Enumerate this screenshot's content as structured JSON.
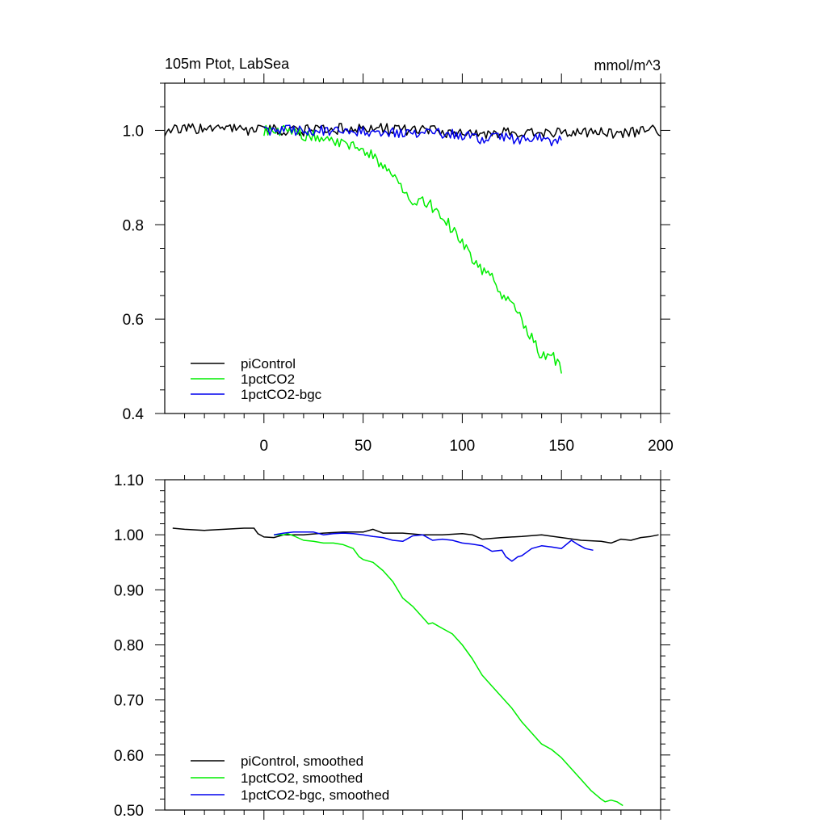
{
  "colors": {
    "piControl": "#000000",
    "1pctCO2": "#00ee00",
    "1pctCO2-bgc": "#0000ee"
  },
  "chart_data": [
    {
      "type": "line",
      "title_left": "105m Ptot, LabSea",
      "title_right": "mmol/m^3",
      "xlim": [
        -50,
        200
      ],
      "ylim": [
        0.4,
        1.1
      ],
      "x_ticks": [
        0,
        50,
        100,
        150,
        200
      ],
      "x_tick_labels": [
        "0",
        "50",
        "100",
        "150",
        "200"
      ],
      "y_ticks": [
        0.4,
        0.6,
        0.8,
        1.0
      ],
      "y_tick_labels": [
        "0.4",
        "0.6",
        "0.8",
        "1.0"
      ],
      "legend_position": "bottom-left",
      "series": [
        {
          "name": "piControl",
          "color": "#000000",
          "x_start": -50,
          "x_end": 200,
          "points": [
            [
              -50,
              1.0
            ],
            [
              -25,
              1.005
            ],
            [
              0,
              1.0
            ],
            [
              25,
              1.0
            ],
            [
              50,
              1.005
            ],
            [
              75,
              1.0
            ],
            [
              100,
              0.995
            ],
            [
              125,
              0.995
            ],
            [
              150,
              0.995
            ],
            [
              175,
              0.995
            ],
            [
              200,
              1.0
            ]
          ]
        },
        {
          "name": "1pctCO2",
          "color": "#00ee00",
          "x_start": 0,
          "x_end": 150,
          "points": [
            [
              0,
              1.0
            ],
            [
              10,
              1.0
            ],
            [
              20,
              0.99
            ],
            [
              30,
              0.985
            ],
            [
              40,
              0.97
            ],
            [
              50,
              0.96
            ],
            [
              55,
              0.95
            ],
            [
              60,
              0.92
            ],
            [
              70,
              0.88
            ],
            [
              75,
              0.84
            ],
            [
              80,
              0.855
            ],
            [
              90,
              0.82
            ],
            [
              95,
              0.79
            ],
            [
              100,
              0.76
            ],
            [
              110,
              0.7
            ],
            [
              115,
              0.69
            ],
            [
              120,
              0.65
            ],
            [
              125,
              0.63
            ],
            [
              130,
              0.6
            ],
            [
              135,
              0.56
            ],
            [
              140,
              0.52
            ],
            [
              145,
              0.53
            ],
            [
              150,
              0.49
            ]
          ]
        },
        {
          "name": "1pctCO2-bgc",
          "color": "#0000ee",
          "x_start": 0,
          "x_end": 150,
          "points": [
            [
              0,
              1.0
            ],
            [
              20,
              1.0
            ],
            [
              40,
              1.0
            ],
            [
              60,
              0.995
            ],
            [
              80,
              0.995
            ],
            [
              100,
              0.99
            ],
            [
              110,
              0.98
            ],
            [
              120,
              0.985
            ],
            [
              130,
              0.98
            ],
            [
              140,
              0.985
            ],
            [
              145,
              0.97
            ],
            [
              150,
              0.99
            ]
          ]
        }
      ]
    },
    {
      "type": "line",
      "xlim": [
        -50,
        200
      ],
      "ylim": [
        0.5,
        1.1
      ],
      "x_ticks": [
        0,
        50,
        100,
        150,
        200
      ],
      "y_ticks": [
        0.5,
        0.6,
        0.7,
        0.8,
        0.9,
        1.0,
        1.1
      ],
      "y_tick_labels": [
        "0.50",
        "0.60",
        "0.70",
        "0.80",
        "0.90",
        "1.00",
        "1.10"
      ],
      "legend_position": "bottom-left",
      "series": [
        {
          "name": "piControl, smoothed",
          "color": "#000000",
          "points": [
            [
              -46,
              1.012
            ],
            [
              -40,
              1.01
            ],
            [
              -30,
              1.008
            ],
            [
              -20,
              1.01
            ],
            [
              -10,
              1.012
            ],
            [
              -5,
              1.012
            ],
            [
              -3,
              1.002
            ],
            [
              0,
              0.996
            ],
            [
              5,
              0.995
            ],
            [
              10,
              1.0
            ],
            [
              20,
              1.0
            ],
            [
              30,
              1.003
            ],
            [
              40,
              1.005
            ],
            [
              50,
              1.005
            ],
            [
              55,
              1.01
            ],
            [
              60,
              1.003
            ],
            [
              70,
              1.003
            ],
            [
              80,
              1.0
            ],
            [
              90,
              1.0
            ],
            [
              100,
              1.002
            ],
            [
              105,
              1.0
            ],
            [
              110,
              0.992
            ],
            [
              120,
              0.995
            ],
            [
              130,
              0.997
            ],
            [
              140,
              1.0
            ],
            [
              150,
              0.995
            ],
            [
              160,
              0.99
            ],
            [
              170,
              0.988
            ],
            [
              175,
              0.985
            ],
            [
              180,
              0.992
            ],
            [
              185,
              0.99
            ],
            [
              190,
              0.995
            ],
            [
              195,
              0.997
            ],
            [
              199,
              1.0
            ]
          ]
        },
        {
          "name": "1pctCO2, smoothed",
          "color": "#00ee00",
          "points": [
            [
              5,
              1.0
            ],
            [
              10,
              1.0
            ],
            [
              12,
              1.002
            ],
            [
              15,
              0.998
            ],
            [
              20,
              0.99
            ],
            [
              25,
              0.988
            ],
            [
              30,
              0.985
            ],
            [
              35,
              0.985
            ],
            [
              40,
              0.982
            ],
            [
              45,
              0.975
            ],
            [
              48,
              0.96
            ],
            [
              50,
              0.955
            ],
            [
              55,
              0.95
            ],
            [
              60,
              0.935
            ],
            [
              65,
              0.915
            ],
            [
              70,
              0.885
            ],
            [
              75,
              0.87
            ],
            [
              80,
              0.85
            ],
            [
              83,
              0.838
            ],
            [
              85,
              0.84
            ],
            [
              90,
              0.83
            ],
            [
              95,
              0.82
            ],
            [
              100,
              0.8
            ],
            [
              105,
              0.775
            ],
            [
              110,
              0.745
            ],
            [
              115,
              0.725
            ],
            [
              120,
              0.705
            ],
            [
              125,
              0.685
            ],
            [
              130,
              0.66
            ],
            [
              135,
              0.64
            ],
            [
              140,
              0.62
            ],
            [
              145,
              0.61
            ],
            [
              150,
              0.595
            ],
            [
              155,
              0.575
            ],
            [
              160,
              0.555
            ],
            [
              165,
              0.535
            ],
            [
              170,
              0.52
            ],
            [
              172,
              0.515
            ],
            [
              175,
              0.518
            ],
            [
              178,
              0.515
            ],
            [
              181,
              0.508
            ]
          ]
        },
        {
          "name": "1pctCO2-bgc, smoothed",
          "color": "#0000ee",
          "points": [
            [
              5,
              1.0
            ],
            [
              10,
              1.003
            ],
            [
              15,
              1.005
            ],
            [
              20,
              1.005
            ],
            [
              25,
              1.005
            ],
            [
              30,
              1.0
            ],
            [
              35,
              1.002
            ],
            [
              40,
              1.003
            ],
            [
              45,
              1.002
            ],
            [
              50,
              1.0
            ],
            [
              55,
              0.997
            ],
            [
              60,
              0.995
            ],
            [
              65,
              0.99
            ],
            [
              70,
              0.988
            ],
            [
              75,
              0.998
            ],
            [
              80,
              1.0
            ],
            [
              85,
              0.99
            ],
            [
              90,
              0.992
            ],
            [
              95,
              0.99
            ],
            [
              100,
              0.985
            ],
            [
              105,
              0.983
            ],
            [
              110,
              0.98
            ],
            [
              115,
              0.97
            ],
            [
              120,
              0.972
            ],
            [
              122,
              0.96
            ],
            [
              125,
              0.952
            ],
            [
              128,
              0.96
            ],
            [
              130,
              0.962
            ],
            [
              135,
              0.975
            ],
            [
              140,
              0.98
            ],
            [
              145,
              0.978
            ],
            [
              150,
              0.975
            ],
            [
              155,
              0.99
            ],
            [
              158,
              0.983
            ],
            [
              162,
              0.975
            ],
            [
              166,
              0.972
            ]
          ]
        }
      ]
    }
  ]
}
